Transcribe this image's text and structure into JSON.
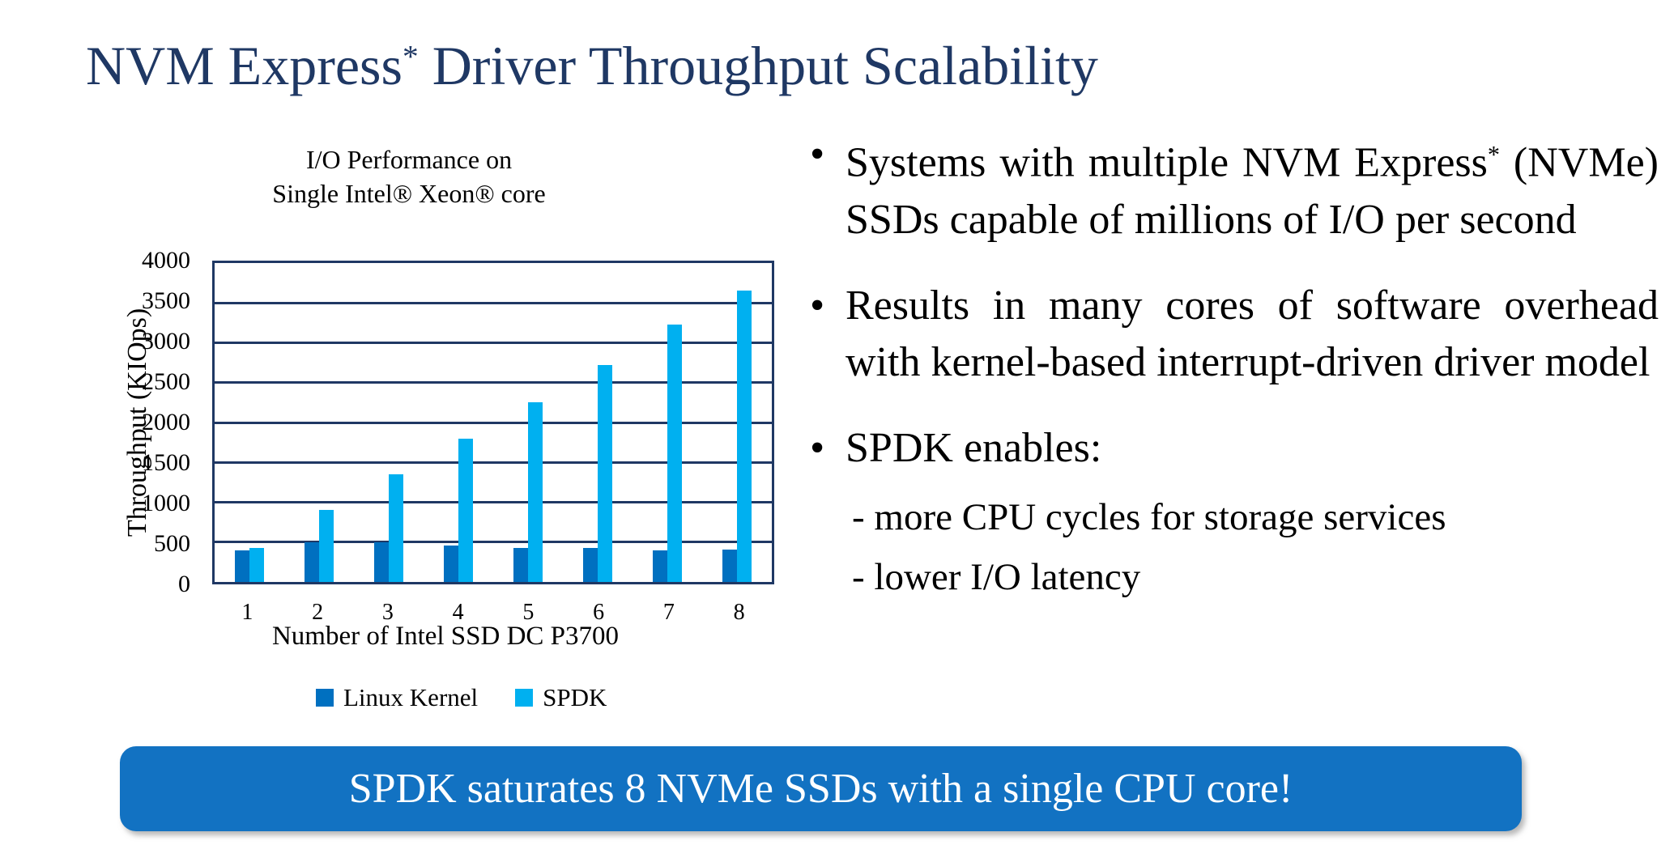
{
  "slide_title": {
    "before": "NVM Express",
    "sup": "*",
    "after": " Driver Throughput Scalability"
  },
  "chart_data": {
    "type": "bar",
    "title": "I/O Performance on Single Intel® Xeon® core",
    "title_lines": [
      "I/O Performance on",
      "Single Intel® Xeon® core"
    ],
    "categories": [
      "1",
      "2",
      "3",
      "4",
      "5",
      "6",
      "7",
      "8"
    ],
    "series": [
      {
        "name": "Linux Kernel",
        "color": "#0070C0",
        "values": [
          400,
          500,
          500,
          460,
          430,
          430,
          400,
          410
        ]
      },
      {
        "name": "SPDK",
        "color": "#00B0F0",
        "values": [
          430,
          900,
          1350,
          1800,
          2250,
          2720,
          3230,
          3650
        ]
      }
    ],
    "xlabel": "Number of Intel SSD DC P3700",
    "ylabel": "Throughput (KIOps)",
    "ylim": [
      0,
      4000
    ],
    "yticks": [
      "0",
      "500",
      "1000",
      "1500",
      "2000",
      "2500",
      "3000",
      "3500",
      "4000"
    ],
    "grid": true,
    "legend_position": "bottom"
  },
  "bullets": [
    {
      "style": "bullet",
      "parts": [
        {
          "t": "text",
          "v": "Systems with multiple NVM Express"
        },
        {
          "t": "sup",
          "v": "*"
        },
        {
          "t": "text",
          "v": " (NVMe) SSDs capable of millions of I/O per second"
        }
      ]
    },
    {
      "style": "bullet",
      "parts": [
        {
          "t": "text",
          "v": "Results in many cores of software overhead with kernel-based interrupt-driven driver model"
        }
      ]
    },
    {
      "style": "bullet",
      "parts": [
        {
          "t": "text",
          "v": "SPDK enables:"
        }
      ]
    },
    {
      "style": "sub",
      "parts": [
        {
          "t": "text",
          "v": "- more CPU cycles for storage services"
        }
      ]
    },
    {
      "style": "sub",
      "parts": [
        {
          "t": "text",
          "v": "- lower I/O latency"
        }
      ]
    }
  ],
  "banner": {
    "text": "SPDK saturates 8 NVMe SSDs with a single CPU core!",
    "bg": "#1272C2"
  },
  "colors": {
    "title_navy": "#1F3864",
    "axis_navy": "#1F3864",
    "bar_dark_blue": "#0070C0",
    "bar_light_blue": "#00B0F0",
    "banner_blue": "#1272C2",
    "banner_text": "#FFFFFF"
  }
}
